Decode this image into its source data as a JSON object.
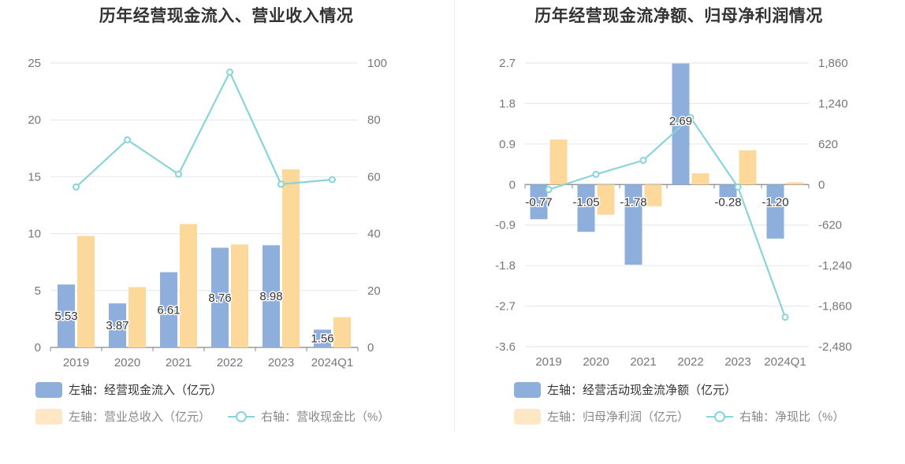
{
  "chart_data": [
    {
      "type": "bar+line",
      "title": "历年经营现金流入、营业收入情况",
      "categories": [
        "2019",
        "2020",
        "2021",
        "2022",
        "2023",
        "2024Q1"
      ],
      "y_left": {
        "ticks": [
          0,
          5,
          10,
          15,
          20,
          25
        ],
        "range": [
          0,
          25
        ]
      },
      "y_right": {
        "ticks": [
          0,
          20,
          40,
          60,
          80,
          100
        ],
        "range": [
          0,
          100
        ]
      },
      "series": [
        {
          "name": "左轴：经营现金流入（亿元）",
          "axis": "left",
          "kind": "bar",
          "color": "#8eaedc",
          "values": [
            5.53,
            3.87,
            6.61,
            8.76,
            8.98,
            1.56
          ],
          "labels": [
            "5.53",
            "3.87",
            "6.61",
            "8.76",
            "8.98",
            "1.56"
          ]
        },
        {
          "name": "左轴：营业总收入（亿元）",
          "axis": "left",
          "kind": "bar",
          "color": "#fdd89b",
          "values": [
            9.8,
            5.3,
            10.85,
            9.05,
            15.65,
            2.65
          ]
        },
        {
          "name": "右轴：营收现金比（%）",
          "axis": "right",
          "kind": "line",
          "color": "#88d4d8",
          "values": [
            56.4,
            73.0,
            60.9,
            96.8,
            57.4,
            59.0
          ]
        }
      ]
    },
    {
      "type": "bar+line",
      "title": "历年经营现金流净额、归母净利润情况",
      "categories": [
        "2019",
        "2020",
        "2021",
        "2022",
        "2023",
        "2024Q1"
      ],
      "y_left": {
        "ticks": [
          -3.6,
          -2.7,
          -1.8,
          -0.9,
          0,
          0.9,
          1.8,
          2.7
        ],
        "tick_labels": [
          "-3.6",
          "-2.7",
          "-1.8",
          "-0.9",
          "0",
          "0.9",
          "1.8",
          "2.7"
        ],
        "range": [
          -3.6,
          2.7
        ]
      },
      "y_right": {
        "ticks": [
          -2480,
          -1860,
          -1240,
          -620,
          0,
          620,
          1240,
          1860
        ],
        "tick_labels": [
          "-2,480",
          "-1,860",
          "-1,240",
          "-620",
          "0",
          "620",
          "1,240",
          "1,860"
        ],
        "range": [
          -2480,
          1860
        ]
      },
      "series": [
        {
          "name": "左轴：经营活动现金流净额（亿元）",
          "axis": "left",
          "kind": "bar",
          "color": "#8eaedc",
          "values": [
            -0.77,
            -1.05,
            -1.78,
            2.69,
            -0.28,
            -1.2
          ],
          "labels": [
            "-0.77",
            "-1.05",
            "-1.78",
            "2.69",
            "-0.28",
            "-1.20"
          ]
        },
        {
          "name": "左轴：归母净利润（亿元）",
          "axis": "left",
          "kind": "bar",
          "color": "#fdd89b",
          "values": [
            1.0,
            -0.67,
            -0.48,
            0.25,
            0.76,
            0.05
          ]
        },
        {
          "name": "右轴：净现比（%）",
          "axis": "right",
          "kind": "line",
          "color": "#88d4d8",
          "values": [
            -77,
            157,
            371,
            1025,
            -37,
            -2030
          ]
        }
      ]
    }
  ]
}
